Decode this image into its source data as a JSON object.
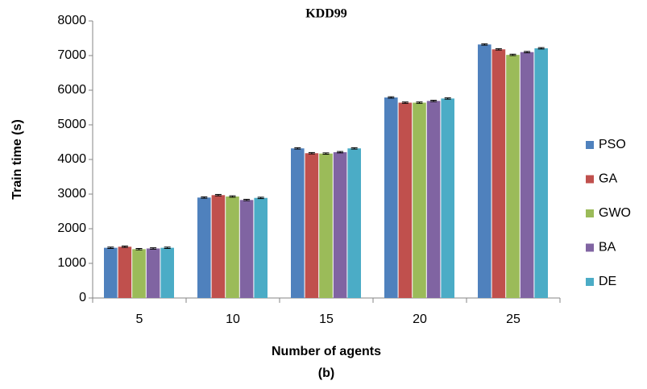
{
  "chart_data": {
    "type": "bar",
    "title": "KDD99",
    "subtitle": "(b)",
    "x_label": "Number of agents",
    "y_label": "Train time (s)",
    "categories": [
      "5",
      "10",
      "15",
      "20",
      "25"
    ],
    "series": [
      {
        "name": "PSO",
        "color": "#4f81bd",
        "values": [
          1450,
          2900,
          4320,
          5790,
          7320
        ],
        "errors": [
          20,
          20,
          20,
          20,
          20
        ]
      },
      {
        "name": "GA",
        "color": "#c0504d",
        "values": [
          1480,
          2970,
          4180,
          5640,
          7180
        ],
        "errors": [
          20,
          20,
          20,
          20,
          20
        ]
      },
      {
        "name": "GWO",
        "color": "#9bbb59",
        "values": [
          1410,
          2930,
          4170,
          5640,
          7020
        ],
        "errors": [
          20,
          20,
          20,
          20,
          20
        ]
      },
      {
        "name": "BA",
        "color": "#8064a2",
        "values": [
          1430,
          2830,
          4210,
          5690,
          7100
        ],
        "errors": [
          20,
          20,
          20,
          20,
          20
        ]
      },
      {
        "name": "DE",
        "color": "#4bacc6",
        "values": [
          1450,
          2890,
          4320,
          5760,
          7210
        ],
        "errors": [
          20,
          20,
          20,
          20,
          20
        ]
      }
    ],
    "ylim": [
      0,
      8000
    ],
    "yticks": [
      0,
      1000,
      2000,
      3000,
      4000,
      5000,
      6000,
      7000,
      8000
    ],
    "grid": false,
    "legend": "right"
  }
}
